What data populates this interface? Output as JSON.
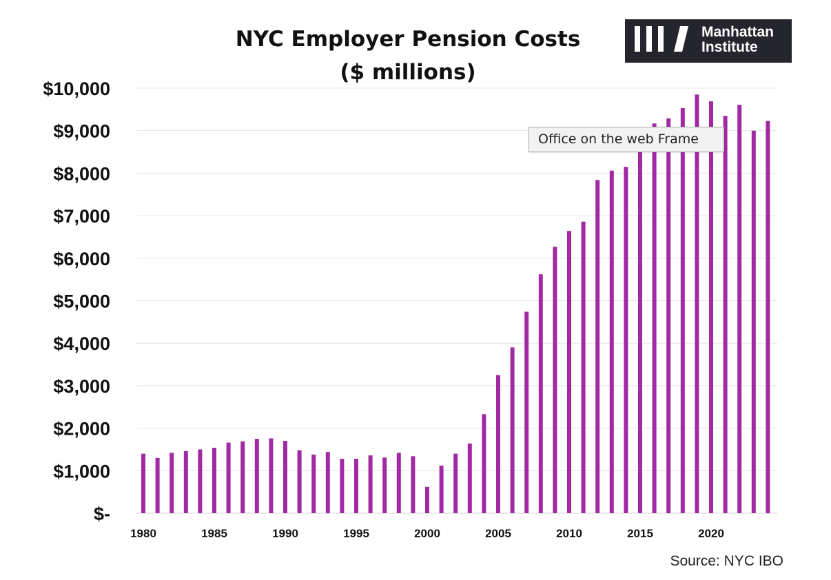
{
  "chart_data": {
    "type": "bar",
    "title": "NYC Employer Pension Costs",
    "subtitle": "($ millions)",
    "xlabel": "",
    "ylabel": "",
    "ylim": [
      0,
      10000
    ],
    "yticks": [
      0,
      1000,
      2000,
      3000,
      4000,
      5000,
      6000,
      7000,
      8000,
      9000,
      10000
    ],
    "ytick_labels": [
      "$-",
      "$1,000",
      "$2,000",
      "$3,000",
      "$4,000",
      "$5,000",
      "$6,000",
      "$7,000",
      "$8,000",
      "$9,000",
      "$10,000"
    ],
    "xtick_labels": [
      "1980",
      "1985",
      "1990",
      "1995",
      "2000",
      "2005",
      "2010",
      "2015",
      "2020"
    ],
    "categories": [
      "1980",
      "1981",
      "1982",
      "1983",
      "1984",
      "1985",
      "1986",
      "1987",
      "1988",
      "1989",
      "1990",
      "1991",
      "1992",
      "1993",
      "1994",
      "1995",
      "1996",
      "1997",
      "1998",
      "1999",
      "2000",
      "2001",
      "2002",
      "2003",
      "2004",
      "2005",
      "2006",
      "2007",
      "2008",
      "2009",
      "2010",
      "2011",
      "2012",
      "2013",
      "2014",
      "2015",
      "2016",
      "2017",
      "2018",
      "2019",
      "2020",
      "2021",
      "2022",
      "2023",
      "2024"
    ],
    "values": [
      1400,
      1300,
      1420,
      1460,
      1500,
      1540,
      1660,
      1690,
      1750,
      1760,
      1700,
      1480,
      1380,
      1440,
      1280,
      1280,
      1360,
      1310,
      1420,
      1340,
      620,
      1120,
      1400,
      1640,
      2330,
      3250,
      3900,
      4740,
      5620,
      6270,
      6640,
      6860,
      7840,
      8060,
      8150,
      8600,
      9170,
      9290,
      9530,
      9850,
      9690,
      9350,
      9610,
      9000,
      9230
    ],
    "grid": true,
    "legend": "none",
    "source": "Source: NYC IBO",
    "bar_color": "#a229a4",
    "grid_color": "#e4e4e4"
  },
  "brand": {
    "name_line1": "Manhattan",
    "name_line2": "Institute",
    "icon": "manhattan-institute-stripes-logo",
    "background": "#25252d"
  },
  "tooltip": {
    "text": "Office on the web Frame"
  }
}
